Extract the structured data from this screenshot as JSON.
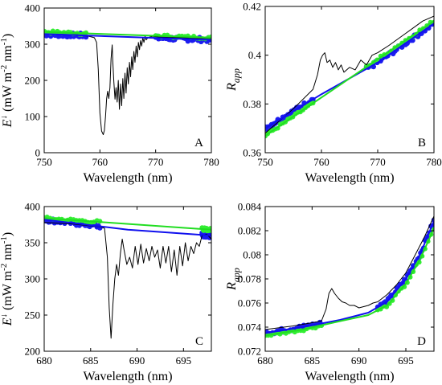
{
  "colors": {
    "measured": "#000000",
    "fit_blue": "#1010ee",
    "fit_green": "#22dd22",
    "dots_blue": "#1c1cf0",
    "dots_green": "#33ee33"
  },
  "chart_data": [
    {
      "type": "line",
      "panel_label": "A",
      "xlabel": "Wavelength (nm)",
      "ylabel_main": "E",
      "ylabel_sup": "↓",
      "ylabel_unit": " (mW m",
      "ylabel_exp1": "-2",
      "ylabel_mid": " nm",
      "ylabel_exp2": "-1",
      "ylabel_close": ")",
      "xlim": [
        750,
        780
      ],
      "ylim": [
        0,
        400
      ],
      "xticks": [
        750,
        760,
        770,
        780
      ],
      "xtick_labels": [
        "750",
        "760",
        "770",
        "780"
      ],
      "yticks": [
        0,
        100,
        200,
        300,
        400
      ],
      "ytick_labels": [
        "0",
        "100",
        "200",
        "300",
        "400"
      ],
      "series": [
        {
          "role": "measured",
          "x": [
            750,
            756,
            758,
            759,
            759.4,
            759.7,
            760.0,
            760.3,
            760.6,
            760.8,
            761.0,
            761.2,
            761.4,
            761.6,
            761.8,
            762.0,
            762.2,
            762.3,
            762.5,
            762.7,
            762.9,
            763.1,
            763.3,
            763.5,
            763.7,
            763.9,
            764.1,
            764.3,
            764.5,
            764.7,
            764.9,
            765.1,
            765.3,
            765.5,
            765.7,
            765.9,
            766.1,
            766.3,
            766.5,
            766.7,
            766.9,
            767.1,
            767.3,
            767.5,
            767.7,
            767.9,
            768.1,
            768.3,
            768.6,
            769.0,
            769.5,
            770.5,
            780
          ],
          "y": [
            328,
            326,
            322,
            318,
            305,
            230,
            110,
            60,
            50,
            62,
            100,
            150,
            170,
            150,
            180,
            260,
            298,
            255,
            195,
            148,
            180,
            140,
            200,
            120,
            190,
            130,
            205,
            150,
            220,
            165,
            235,
            190,
            250,
            210,
            265,
            230,
            280,
            250,
            295,
            265,
            305,
            285,
            310,
            295,
            318,
            305,
            322,
            312,
            318,
            320,
            322,
            320,
            316
          ]
        },
        {
          "role": "fit-blue",
          "x": [
            750,
            780
          ],
          "y": [
            328,
            312
          ]
        },
        {
          "role": "fit-green",
          "x": [
            750,
            780
          ],
          "y": [
            334,
            318
          ]
        }
      ],
      "dot_segments": [
        [
          750,
          757.5
        ],
        [
          770,
          780
        ]
      ],
      "dot_center": [
        332,
        317
      ]
    },
    {
      "type": "line",
      "panel_label": "B",
      "xlabel": "Wavelength (nm)",
      "ylabel_main": "R",
      "ylabel_sub": "app",
      "xlim": [
        750,
        780
      ],
      "ylim": [
        0.36,
        0.42
      ],
      "xticks": [
        750,
        760,
        770,
        780
      ],
      "xtick_labels": [
        "750",
        "760",
        "770",
        "780"
      ],
      "yticks": [
        0.36,
        0.38,
        0.4,
        0.42
      ],
      "ytick_labels": [
        "0.36",
        "0.38",
        "0.4",
        "0.42"
      ],
      "series": [
        {
          "role": "measured",
          "x": [
            750,
            755,
            758.5,
            759.3,
            759.8,
            760.2,
            760.6,
            761.0,
            761.5,
            762.0,
            762.5,
            763.0,
            763.5,
            764.0,
            765.0,
            766.0,
            767.0,
            768.0,
            769.0,
            770.0,
            772.0,
            775.0,
            778.0,
            780
          ],
          "y": [
            0.368,
            0.378,
            0.386,
            0.392,
            0.398,
            0.4,
            0.401,
            0.397,
            0.398,
            0.395,
            0.397,
            0.394,
            0.396,
            0.393,
            0.395,
            0.394,
            0.398,
            0.396,
            0.4,
            0.401,
            0.404,
            0.409,
            0.414,
            0.416
          ]
        },
        {
          "role": "fit-blue",
          "x": [
            750,
            760,
            770,
            780
          ],
          "y": [
            0.37,
            0.384,
            0.397,
            0.413
          ]
        },
        {
          "role": "fit-green",
          "x": [
            750,
            780
          ],
          "y": [
            0.367,
            0.414
          ]
        }
      ],
      "dot_segments": [
        [
          750,
          758.5
        ],
        [
          768,
          780
        ]
      ],
      "dot_center": [
        0.37,
        0.414
      ]
    },
    {
      "type": "line",
      "panel_label": "C",
      "xlabel": "Wavelength (nm)",
      "ylabel_main": "E",
      "ylabel_sup": "↓",
      "ylabel_unit": " (mW m",
      "ylabel_exp1": "-2",
      "ylabel_mid": " nm",
      "ylabel_exp2": "-1",
      "ylabel_close": ")",
      "xlim": [
        680,
        698
      ],
      "ylim": [
        200,
        400
      ],
      "xticks": [
        680,
        685,
        690,
        695
      ],
      "xtick_labels": [
        "680",
        "685",
        "690",
        "695"
      ],
      "yticks": [
        200,
        250,
        300,
        350,
        400
      ],
      "ytick_labels": [
        "200",
        "250",
        "300",
        "350",
        "400"
      ],
      "series": [
        {
          "role": "measured",
          "x": [
            680,
            683,
            686,
            686.5,
            686.8,
            687.0,
            687.2,
            687.4,
            687.6,
            687.8,
            688.0,
            688.2,
            688.4,
            688.6,
            688.9,
            689.2,
            689.5,
            689.8,
            690.1,
            690.4,
            690.7,
            691.0,
            691.3,
            691.6,
            691.9,
            692.2,
            692.5,
            692.8,
            693.1,
            693.4,
            693.7,
            694.0,
            694.3,
            694.6,
            694.9,
            695.2,
            695.5,
            695.8,
            696.1,
            696.4,
            696.7,
            697.0,
            697.5,
            698
          ],
          "y": [
            378,
            376,
            372,
            370,
            330,
            260,
            218,
            265,
            300,
            320,
            305,
            335,
            355,
            340,
            320,
            330,
            315,
            345,
            320,
            348,
            322,
            342,
            325,
            345,
            330,
            340,
            315,
            345,
            322,
            345,
            310,
            340,
            305,
            345,
            318,
            350,
            325,
            345,
            335,
            350,
            345,
            360,
            362,
            355
          ]
        },
        {
          "role": "fit-blue",
          "x": [
            680,
            689,
            698
          ],
          "y": [
            382,
            368,
            360
          ]
        },
        {
          "role": "fit-green",
          "x": [
            680,
            698
          ],
          "y": [
            384,
            368
          ]
        }
      ],
      "dot_segments": [
        [
          680,
          686
        ],
        [
          697,
          698
        ]
      ],
      "dot_center": [
        381,
        360
      ]
    },
    {
      "type": "line",
      "panel_label": "D",
      "xlabel": "Wavelength (nm)",
      "ylabel_main": "R",
      "ylabel_sub": "app",
      "xlim": [
        680,
        698
      ],
      "ylim": [
        0.072,
        0.084
      ],
      "xticks": [
        680,
        685,
        690,
        695
      ],
      "xtick_labels": [
        "680",
        "685",
        "690",
        "695"
      ],
      "yticks": [
        0.072,
        0.074,
        0.076,
        0.078,
        0.08,
        0.082,
        0.084
      ],
      "ytick_labels": [
        "0.072",
        "0.074",
        "0.076",
        "0.078",
        "0.08",
        "0.082",
        "0.084"
      ],
      "series": [
        {
          "role": "measured",
          "x": [
            680,
            683,
            686,
            686.5,
            686.8,
            687.1,
            687.4,
            687.8,
            688.2,
            688.6,
            689.0,
            689.5,
            690.0,
            690.5,
            691.0,
            691.5,
            692.0,
            693.0,
            694.0,
            695.0,
            696.0,
            697.0,
            698
          ],
          "y": [
            0.0738,
            0.0741,
            0.0745,
            0.0755,
            0.0768,
            0.0772,
            0.0768,
            0.0764,
            0.0761,
            0.076,
            0.0758,
            0.0758,
            0.0756,
            0.0757,
            0.0758,
            0.076,
            0.0761,
            0.0767,
            0.0775,
            0.0785,
            0.08,
            0.0815,
            0.0832
          ]
        },
        {
          "role": "fit-blue",
          "x": [
            680,
            684,
            688,
            691,
            693,
            695,
            696.5,
            698
          ],
          "y": [
            0.0735,
            0.074,
            0.0746,
            0.0752,
            0.0761,
            0.078,
            0.08,
            0.0828
          ]
        },
        {
          "role": "fit-green",
          "x": [
            680,
            684,
            688,
            691,
            693,
            695,
            696.5,
            698
          ],
          "y": [
            0.0733,
            0.0738,
            0.0745,
            0.075,
            0.0758,
            0.0776,
            0.0796,
            0.0822
          ]
        }
      ],
      "dot_segments": [
        [
          680,
          686
        ],
        [
          692,
          698
        ]
      ],
      "dot_center": [
        0.074,
        0.0832
      ]
    }
  ]
}
